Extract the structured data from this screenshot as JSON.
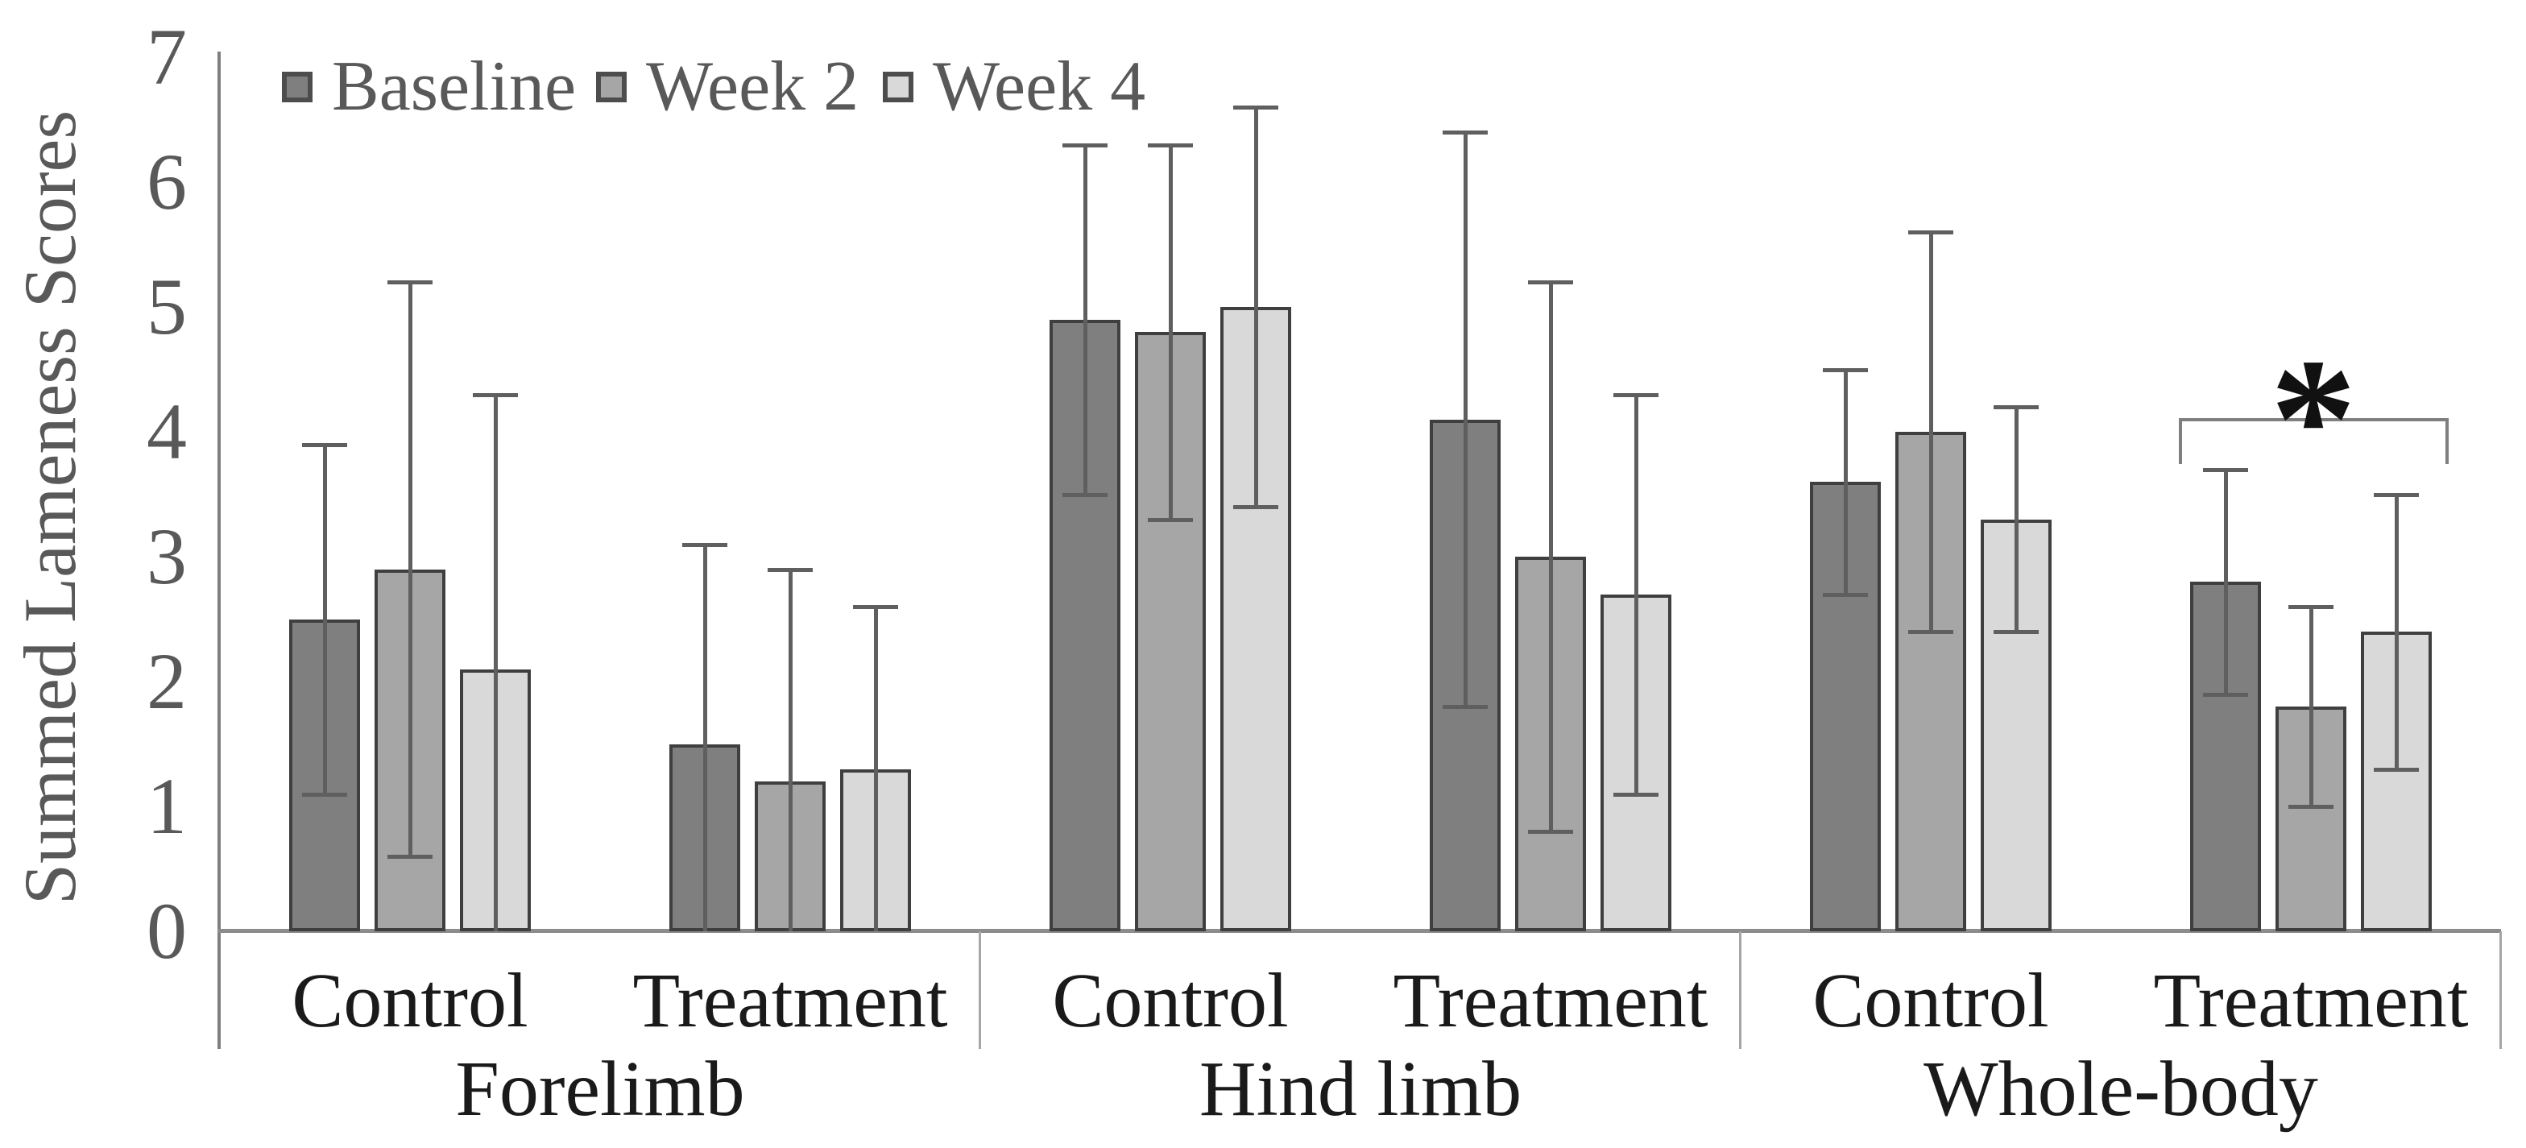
{
  "chart_data": {
    "type": "bar",
    "title": "",
    "ylabel": "Summed Lameness Scores",
    "xlabel": "",
    "ylim": [
      0,
      7
    ],
    "yticks": [
      "0",
      "1",
      "2",
      "3",
      "4",
      "5",
      "6",
      "7"
    ],
    "grid": false,
    "legend_position": "top-left",
    "group_labels": [
      "Forelimb",
      "Hind limb",
      "Whole-body"
    ],
    "subgroup_labels": [
      "Control",
      "Treatment"
    ],
    "categories": [
      "Forelimb Control",
      "Forelimb Treatment",
      "Hind limb Control",
      "Hind limb Treatment",
      "Whole-body Control",
      "Whole-body Treatment"
    ],
    "series": [
      {
        "name": "Baseline",
        "color": "#7f7f7f",
        "values": [
          2.5,
          1.5,
          4.9,
          4.1,
          3.6,
          2.8
        ],
        "error_high": [
          3.9,
          3.1,
          6.3,
          6.4,
          4.5,
          3.7
        ],
        "error_low": [
          1.1,
          0.0,
          3.5,
          1.8,
          2.7,
          1.9
        ]
      },
      {
        "name": "Week 2",
        "color": "#a6a6a6",
        "values": [
          2.9,
          1.2,
          4.8,
          3.0,
          4.0,
          1.8
        ],
        "error_high": [
          5.2,
          2.9,
          6.3,
          5.2,
          5.6,
          2.6
        ],
        "error_low": [
          0.6,
          0.0,
          3.3,
          0.8,
          2.4,
          1.0
        ]
      },
      {
        "name": "Week 4",
        "color": "#d9d9d9",
        "values": [
          2.1,
          1.3,
          5.0,
          2.7,
          3.3,
          2.4
        ],
        "error_high": [
          4.3,
          2.6,
          6.6,
          4.3,
          4.2,
          3.5
        ],
        "error_low": [
          0.0,
          0.0,
          3.4,
          1.1,
          2.4,
          1.3
        ]
      }
    ],
    "significance": {
      "marker": "*",
      "target_group": "Whole-body",
      "target_subgroup": "Treatment"
    },
    "style": {
      "axis_text_color": "#595959",
      "category_text_color": "#1a1a1a",
      "bar_border_color": "#3f3f3f",
      "error_bar_color": "#5f5f5f",
      "axis_line_color": "#7f7f7f",
      "baseline_color": "#8c8c8c",
      "background": "#ffffff"
    }
  }
}
